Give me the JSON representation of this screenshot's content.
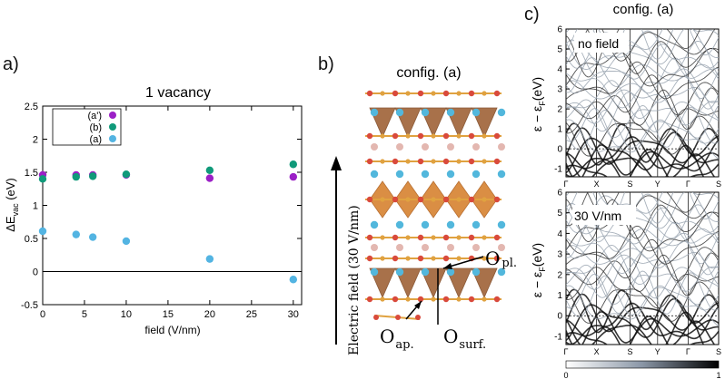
{
  "panel_a": {
    "letter": "a)",
    "chart_data": {
      "type": "scatter",
      "title": "1 vacancy",
      "xlabel": "field (V/nm)",
      "ylabel_main": "ΔE",
      "ylabel_sub": "vac",
      "ylabel_unit": " (eV)",
      "xlim": [
        0,
        31
      ],
      "ylim": [
        -0.5,
        2.5
      ],
      "xticks": [
        0,
        5,
        10,
        15,
        20,
        25,
        30
      ],
      "yticks": [
        -0.5,
        0,
        0.5,
        1,
        1.5,
        2,
        2.5
      ],
      "ytick_labels": [
        "-0.5",
        "0",
        "0.5",
        "1",
        "1.5",
        "2",
        "2.5"
      ],
      "legend_position": "top-left",
      "series": [
        {
          "name": "(a')",
          "color": "#9b1fc6",
          "x": [
            0,
            4,
            6,
            10,
            20,
            30
          ],
          "y": [
            1.46,
            1.46,
            1.46,
            1.46,
            1.41,
            1.43
          ]
        },
        {
          "name": "(b)",
          "color": "#109a7a",
          "x": [
            0,
            4,
            6,
            10,
            20,
            30
          ],
          "y": [
            1.4,
            1.43,
            1.44,
            1.47,
            1.53,
            1.62
          ]
        },
        {
          "name": "(a)",
          "color": "#53b4e2",
          "x": [
            0,
            4,
            6,
            10,
            20,
            30
          ],
          "y": [
            0.61,
            0.56,
            0.52,
            0.46,
            0.19,
            -0.12
          ]
        }
      ]
    }
  },
  "panel_b": {
    "letter": "b)",
    "title": "config. (a)",
    "field_label": "Electric field (30 V/nm)",
    "label_opl_main": "O",
    "label_opl_sub": "pl.",
    "label_oap_main": "O",
    "label_oap_sub": "ap.",
    "label_osurf_main": "O",
    "label_osurf_sub": "surf.",
    "colors": {
      "octahedron": "#d9893a",
      "bond": "#e0a240",
      "oxygen": "#d94a3c",
      "cation": "#52b7dc",
      "dopant": "#e3b7b0"
    }
  },
  "panel_c": {
    "letter": "c)",
    "title": "config. (a)",
    "top_label": "no field",
    "bottom_label": "30 V/nm",
    "ylabel": "ε − ε",
    "ylabel_sub": "F",
    "ylabel_unit": "(eV)",
    "yticks": [
      -1,
      0,
      1,
      2,
      3,
      4,
      5,
      6
    ],
    "ytick_labels": [
      "-1",
      "0",
      "1",
      "2",
      "3",
      "4",
      "5",
      "6"
    ],
    "kpoints": [
      "Γ",
      "X",
      "S",
      "Y",
      "Γ",
      "S"
    ],
    "colorbar_min": "0",
    "colorbar_max": "1"
  }
}
